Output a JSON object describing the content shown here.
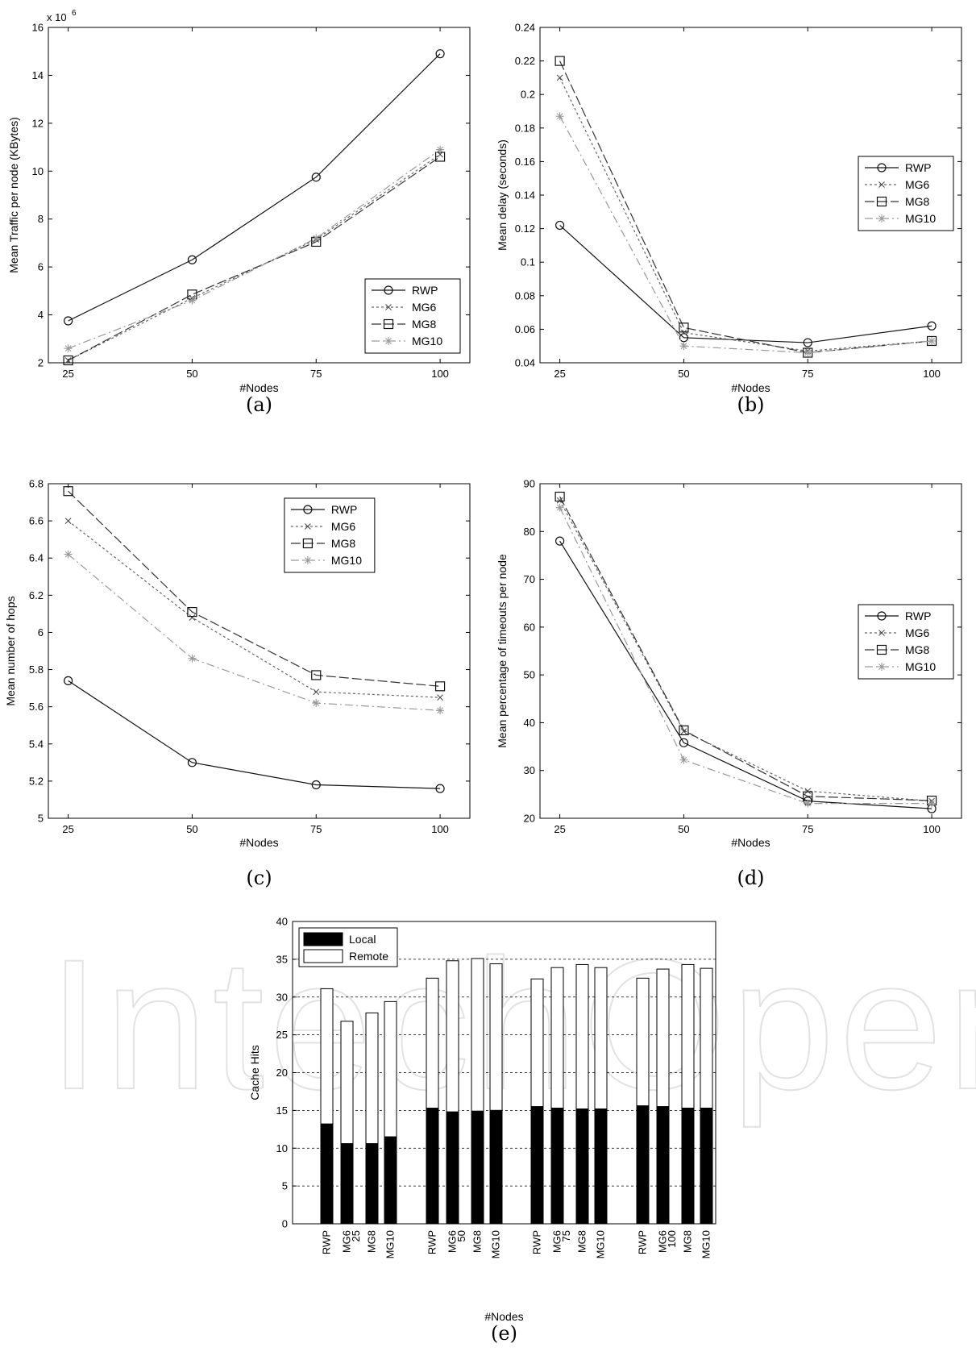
{
  "watermark": "IntechOpen",
  "chart_data": [
    {
      "id": "a",
      "type": "line",
      "caption": "(a)",
      "xlabel": "#Nodes",
      "ylabel": "Mean Traffic per node (KBytes)",
      "y_multiplier": "x 10",
      "y_multiplier_exp": "6",
      "x": [
        25,
        50,
        75,
        100
      ],
      "xlim": [
        21,
        106
      ],
      "ylim": [
        2,
        16
      ],
      "yticks": [
        2,
        4,
        6,
        8,
        10,
        12,
        14,
        16
      ],
      "legend_position": "bottom-right",
      "series": [
        {
          "name": "RWP",
          "values": [
            3.75,
            6.3,
            9.75,
            14.9
          ],
          "marker": "circle",
          "dash": ""
        },
        {
          "name": "MG6",
          "values": [
            2.1,
            4.7,
            7.15,
            10.7
          ],
          "marker": "x",
          "dash": "3,3"
        },
        {
          "name": "MG8",
          "values": [
            2.1,
            4.85,
            7.05,
            10.6
          ],
          "marker": "square",
          "dash": "12,4"
        },
        {
          "name": "MG10",
          "values": [
            2.6,
            4.6,
            7.2,
            10.9
          ],
          "marker": "star",
          "dash": "10,4,2,4"
        }
      ]
    },
    {
      "id": "b",
      "type": "line",
      "caption": "(b)",
      "xlabel": "#Nodes",
      "ylabel": "Mean delay (seconds)",
      "x": [
        25,
        50,
        75,
        100
      ],
      "xlim": [
        21,
        106
      ],
      "ylim": [
        0.04,
        0.24
      ],
      "yticks": [
        0.04,
        0.06,
        0.08,
        0.1,
        0.12,
        0.14,
        0.16,
        0.18,
        0.2,
        0.22,
        0.24
      ],
      "legend_position": "right",
      "series": [
        {
          "name": "RWP",
          "values": [
            0.122,
            0.055,
            0.052,
            0.062
          ],
          "marker": "circle",
          "dash": ""
        },
        {
          "name": "MG6",
          "values": [
            0.21,
            0.058,
            0.047,
            0.053
          ],
          "marker": "x",
          "dash": "3,3"
        },
        {
          "name": "MG8",
          "values": [
            0.22,
            0.061,
            0.046,
            0.053
          ],
          "marker": "square",
          "dash": "12,4"
        },
        {
          "name": "MG10",
          "values": [
            0.187,
            0.05,
            0.046,
            0.053
          ],
          "marker": "star",
          "dash": "10,4,2,4"
        }
      ]
    },
    {
      "id": "c",
      "type": "line",
      "caption": "(c)",
      "xlabel": "#Nodes",
      "ylabel": "Mean number of hops",
      "x": [
        25,
        50,
        75,
        100
      ],
      "xlim": [
        21,
        106
      ],
      "ylim": [
        5,
        6.8
      ],
      "yticks": [
        5,
        5.2,
        5.4,
        5.6,
        5.8,
        6,
        6.2,
        6.4,
        6.6,
        6.8
      ],
      "legend_position": "top-right",
      "series": [
        {
          "name": "RWP",
          "values": [
            5.74,
            5.3,
            5.18,
            5.16
          ],
          "marker": "circle",
          "dash": ""
        },
        {
          "name": "MG6",
          "values": [
            6.6,
            6.08,
            5.68,
            5.65
          ],
          "marker": "x",
          "dash": "3,3"
        },
        {
          "name": "MG8",
          "values": [
            6.76,
            6.11,
            5.77,
            5.71
          ],
          "marker": "square",
          "dash": "12,4"
        },
        {
          "name": "MG10",
          "values": [
            6.42,
            5.86,
            5.62,
            5.58
          ],
          "marker": "star",
          "dash": "10,4,2,4"
        }
      ]
    },
    {
      "id": "d",
      "type": "line",
      "caption": "(d)",
      "xlabel": "#Nodes",
      "ylabel": "Mean percentage of timeouts per node",
      "x": [
        25,
        50,
        75,
        100
      ],
      "xlim": [
        21,
        106
      ],
      "ylim": [
        20,
        90
      ],
      "yticks": [
        20,
        30,
        40,
        50,
        60,
        70,
        80,
        90
      ],
      "legend_position": "right",
      "series": [
        {
          "name": "RWP",
          "values": [
            78,
            35.8,
            23.6,
            22
          ],
          "marker": "circle",
          "dash": ""
        },
        {
          "name": "MG6",
          "values": [
            86.5,
            38.2,
            25.7,
            23.6
          ],
          "marker": "x",
          "dash": "3,3"
        },
        {
          "name": "MG8",
          "values": [
            87.3,
            38.4,
            24.6,
            23.7
          ],
          "marker": "square",
          "dash": "12,4"
        },
        {
          "name": "MG10",
          "values": [
            85,
            32.2,
            23.1,
            23.1
          ],
          "marker": "star",
          "dash": "10,4,2,4"
        }
      ]
    },
    {
      "id": "e",
      "type": "bar",
      "stacked": true,
      "caption": "(e)",
      "xlabel": "#Nodes",
      "ylabel": "Cache Hits",
      "ylim": [
        0,
        40
      ],
      "yticks": [
        0,
        5,
        10,
        15,
        20,
        25,
        30,
        35,
        40
      ],
      "grid": "dashed-horizontal",
      "legend_position": "top-left",
      "legend": [
        {
          "name": "Local",
          "color": "#000000"
        },
        {
          "name": "Remote",
          "color": "#ffffff"
        }
      ],
      "groups": [
        "25",
        "50",
        "75",
        "100"
      ],
      "bar_labels": [
        "RWP",
        "MG6",
        "MG8",
        "MG10"
      ],
      "bars": [
        [
          {
            "local": 13.2,
            "total": 31.1
          },
          {
            "local": 10.6,
            "total": 26.8
          },
          {
            "local": 10.6,
            "total": 27.9
          },
          {
            "local": 11.5,
            "total": 29.4
          }
        ],
        [
          {
            "local": 15.3,
            "total": 32.5
          },
          {
            "local": 14.8,
            "total": 34.8
          },
          {
            "local": 14.9,
            "total": 35.1
          },
          {
            "local": 15.0,
            "total": 34.4
          }
        ],
        [
          {
            "local": 15.5,
            "total": 32.4
          },
          {
            "local": 15.3,
            "total": 33.9
          },
          {
            "local": 15.2,
            "total": 34.3
          },
          {
            "local": 15.2,
            "total": 33.9
          }
        ],
        [
          {
            "local": 15.6,
            "total": 32.5
          },
          {
            "local": 15.5,
            "total": 33.7
          },
          {
            "local": 15.3,
            "total": 34.3
          },
          {
            "local": 15.3,
            "total": 33.8
          }
        ]
      ]
    }
  ]
}
